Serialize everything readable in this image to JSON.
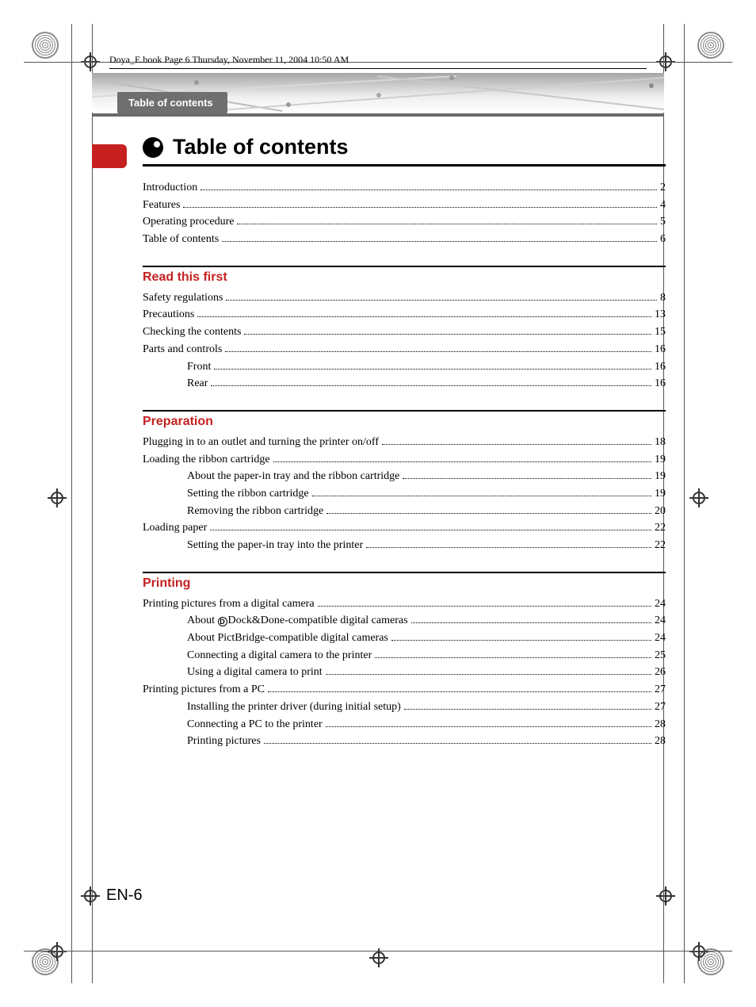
{
  "page_info": "Doya_E.book  Page 6  Thursday, November 11, 2004  10:50 AM",
  "header_tab": "Table of contents",
  "title": "Table of contents",
  "accent_color": "#c62020",
  "intro_items": [
    {
      "label": "Introduction",
      "page": "2",
      "indent": 0
    },
    {
      "label": "Features",
      "page": "4",
      "indent": 0
    },
    {
      "label": "Operating procedure",
      "page": "5",
      "indent": 0
    },
    {
      "label": "Table of contents",
      "page": "6",
      "indent": 0
    }
  ],
  "sections": [
    {
      "heading": "Read this first",
      "items": [
        {
          "label": "Safety regulations",
          "page": "8",
          "indent": 0
        },
        {
          "label": "Precautions",
          "page": "13",
          "indent": 0
        },
        {
          "label": "Checking the contents",
          "page": "15",
          "indent": 0
        },
        {
          "label": "Parts and controls",
          "page": "16",
          "indent": 0
        },
        {
          "label": "Front",
          "page": "16",
          "indent": 1
        },
        {
          "label": "Rear",
          "page": "16",
          "indent": 1
        }
      ]
    },
    {
      "heading": "Preparation",
      "items": [
        {
          "label": "Plugging in to an outlet and turning the printer on/off",
          "page": "18",
          "indent": 0
        },
        {
          "label": "Loading the ribbon cartridge",
          "page": "19",
          "indent": 0
        },
        {
          "label": "About the paper-in tray and the ribbon cartridge",
          "page": "19",
          "indent": 1
        },
        {
          "label": "Setting the ribbon cartridge",
          "page": "19",
          "indent": 1
        },
        {
          "label": "Removing the ribbon cartridge",
          "page": "20",
          "indent": 1
        },
        {
          "label": "Loading paper",
          "page": "22",
          "indent": 0
        },
        {
          "label": "Setting the paper-in tray into the printer",
          "page": "22",
          "indent": 1
        }
      ]
    },
    {
      "heading": "Printing",
      "items": [
        {
          "label": "Printing pictures from a digital camera",
          "page": "24",
          "indent": 0
        },
        {
          "label": "About [DD]Dock&Done-compatible digital cameras",
          "page": "24",
          "indent": 1
        },
        {
          "label": "About PictBridge-compatible digital cameras",
          "page": "24",
          "indent": 1
        },
        {
          "label": "Connecting a digital camera to the printer",
          "page": "25",
          "indent": 1
        },
        {
          "label": "Using a digital camera to print",
          "page": "26",
          "indent": 1
        },
        {
          "label": "Printing pictures from a PC",
          "page": "27",
          "indent": 0
        },
        {
          "label": "Installing the printer driver (during initial setup)",
          "page": "27",
          "indent": 1
        },
        {
          "label": "Connecting a PC to the printer",
          "page": "28",
          "indent": 1
        },
        {
          "label": "Printing pictures",
          "page": "28",
          "indent": 1
        }
      ]
    }
  ],
  "page_number": "EN-6"
}
